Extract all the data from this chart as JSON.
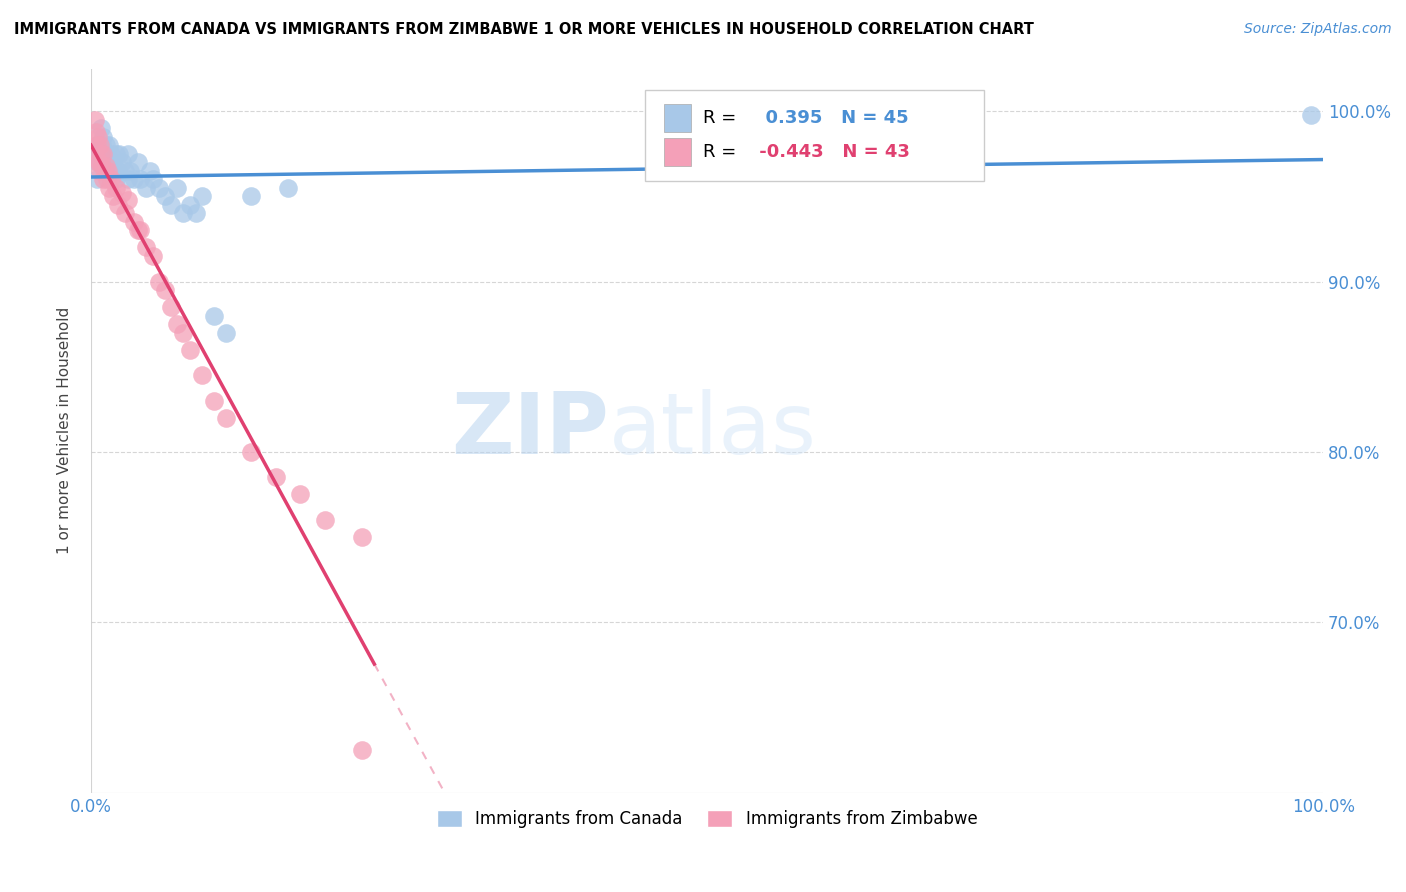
{
  "title": "IMMIGRANTS FROM CANADA VS IMMIGRANTS FROM ZIMBABWE 1 OR MORE VEHICLES IN HOUSEHOLD CORRELATION CHART",
  "source": "Source: ZipAtlas.com",
  "ylabel": "1 or more Vehicles in Household",
  "xlim": [
    0.0,
    1.0
  ],
  "ylim": [
    0.6,
    1.025
  ],
  "canada_R": 0.395,
  "canada_N": 45,
  "zimbabwe_R": -0.443,
  "zimbabwe_N": 43,
  "canada_color": "#a8c8e8",
  "zimbabwe_color": "#f4a0b8",
  "canada_line_color": "#4a8fd4",
  "zimbabwe_line_color": "#e04070",
  "watermark_zip": "ZIP",
  "watermark_atlas": "atlas",
  "canada_points_x": [
    0.005,
    0.005,
    0.005,
    0.007,
    0.008,
    0.008,
    0.009,
    0.01,
    0.01,
    0.012,
    0.013,
    0.014,
    0.015,
    0.015,
    0.016,
    0.017,
    0.018,
    0.02,
    0.02,
    0.022,
    0.023,
    0.025,
    0.028,
    0.03,
    0.03,
    0.032,
    0.035,
    0.038,
    0.04,
    0.045,
    0.048,
    0.05,
    0.055,
    0.06,
    0.065,
    0.07,
    0.075,
    0.08,
    0.085,
    0.09,
    0.1,
    0.11,
    0.13,
    0.16,
    0.99
  ],
  "canada_points_y": [
    0.98,
    0.97,
    0.96,
    0.975,
    0.99,
    0.975,
    0.98,
    0.985,
    0.975,
    0.98,
    0.975,
    0.97,
    0.98,
    0.97,
    0.975,
    0.965,
    0.97,
    0.975,
    0.96,
    0.965,
    0.975,
    0.97,
    0.965,
    0.96,
    0.975,
    0.965,
    0.96,
    0.97,
    0.96,
    0.955,
    0.965,
    0.96,
    0.955,
    0.95,
    0.945,
    0.955,
    0.94,
    0.945,
    0.94,
    0.95,
    0.88,
    0.87,
    0.95,
    0.955,
    0.998
  ],
  "zimbabwe_points_x": [
    0.003,
    0.004,
    0.005,
    0.005,
    0.006,
    0.006,
    0.007,
    0.007,
    0.008,
    0.009,
    0.01,
    0.01,
    0.012,
    0.013,
    0.014,
    0.015,
    0.016,
    0.018,
    0.02,
    0.022,
    0.025,
    0.028,
    0.03,
    0.035,
    0.038,
    0.04,
    0.045,
    0.05,
    0.055,
    0.06,
    0.065,
    0.07,
    0.075,
    0.08,
    0.09,
    0.1,
    0.11,
    0.13,
    0.15,
    0.17,
    0.19,
    0.22,
    0.22
  ],
  "zimbabwe_points_y": [
    0.995,
    0.988,
    0.98,
    0.972,
    0.985,
    0.97,
    0.98,
    0.965,
    0.975,
    0.968,
    0.975,
    0.96,
    0.968,
    0.96,
    0.965,
    0.955,
    0.96,
    0.95,
    0.955,
    0.945,
    0.952,
    0.94,
    0.948,
    0.935,
    0.93,
    0.93,
    0.92,
    0.915,
    0.9,
    0.895,
    0.885,
    0.875,
    0.87,
    0.86,
    0.845,
    0.83,
    0.82,
    0.8,
    0.785,
    0.775,
    0.76,
    0.75,
    0.625
  ],
  "trend_line_solid_end_z": 0.23,
  "trend_line_x_start": 0.0,
  "trend_line_x_end": 1.0,
  "y_ticks": [
    0.7,
    0.8,
    0.9,
    1.0
  ],
  "y_tick_labels": [
    "70.0%",
    "80.0%",
    "90.0%",
    "100.0%"
  ]
}
